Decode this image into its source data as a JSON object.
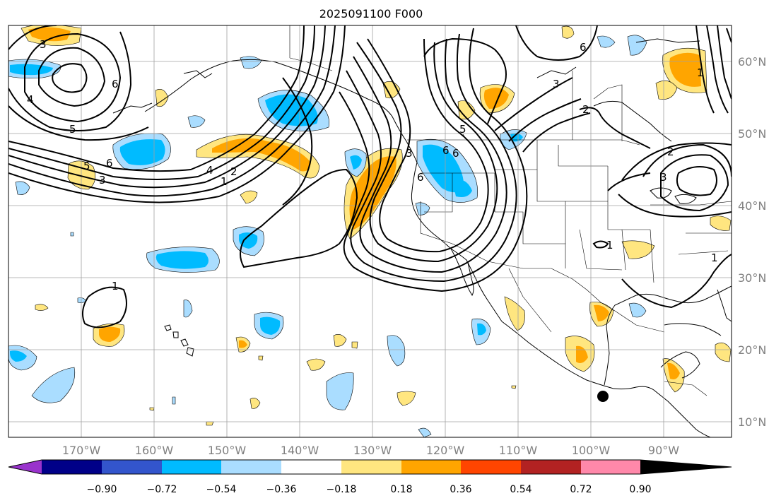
{
  "title": "2025091100 F000",
  "map": {
    "lon_ticks": [
      "170°W",
      "160°W",
      "150°W",
      "140°W",
      "130°W",
      "120°W",
      "110°W",
      "100°W",
      "90°W"
    ],
    "lat_ticks": [
      "60°N",
      "50°N",
      "40°N",
      "30°N",
      "20°N",
      "10°N"
    ],
    "contour_labels": [
      "3",
      "4",
      "5",
      "6",
      "5",
      "6",
      "3",
      "4",
      "1",
      "2",
      "1",
      "6",
      "3",
      "6",
      "5",
      "6",
      "6",
      "3",
      "2",
      "3",
      "1",
      "1",
      "1",
      "2"
    ],
    "colors": {
      "coast": "#000000",
      "grid": "#a0a0a0",
      "contour": "#000000",
      "marker": "#000000"
    }
  },
  "colorbar": {
    "colors": [
      "#9933cc",
      "#000088",
      "#3355cc",
      "#00bbff",
      "#aaddff",
      "#ffffff",
      "#ffe680",
      "#ffa500",
      "#ff4500",
      "#b22222",
      "#ff88aa"
    ],
    "ticks": [
      "−0.90",
      "−0.72",
      "−0.54",
      "−0.36",
      "−0.18",
      "0.18",
      "0.36",
      "0.54",
      "0.72",
      "0.90"
    ]
  }
}
